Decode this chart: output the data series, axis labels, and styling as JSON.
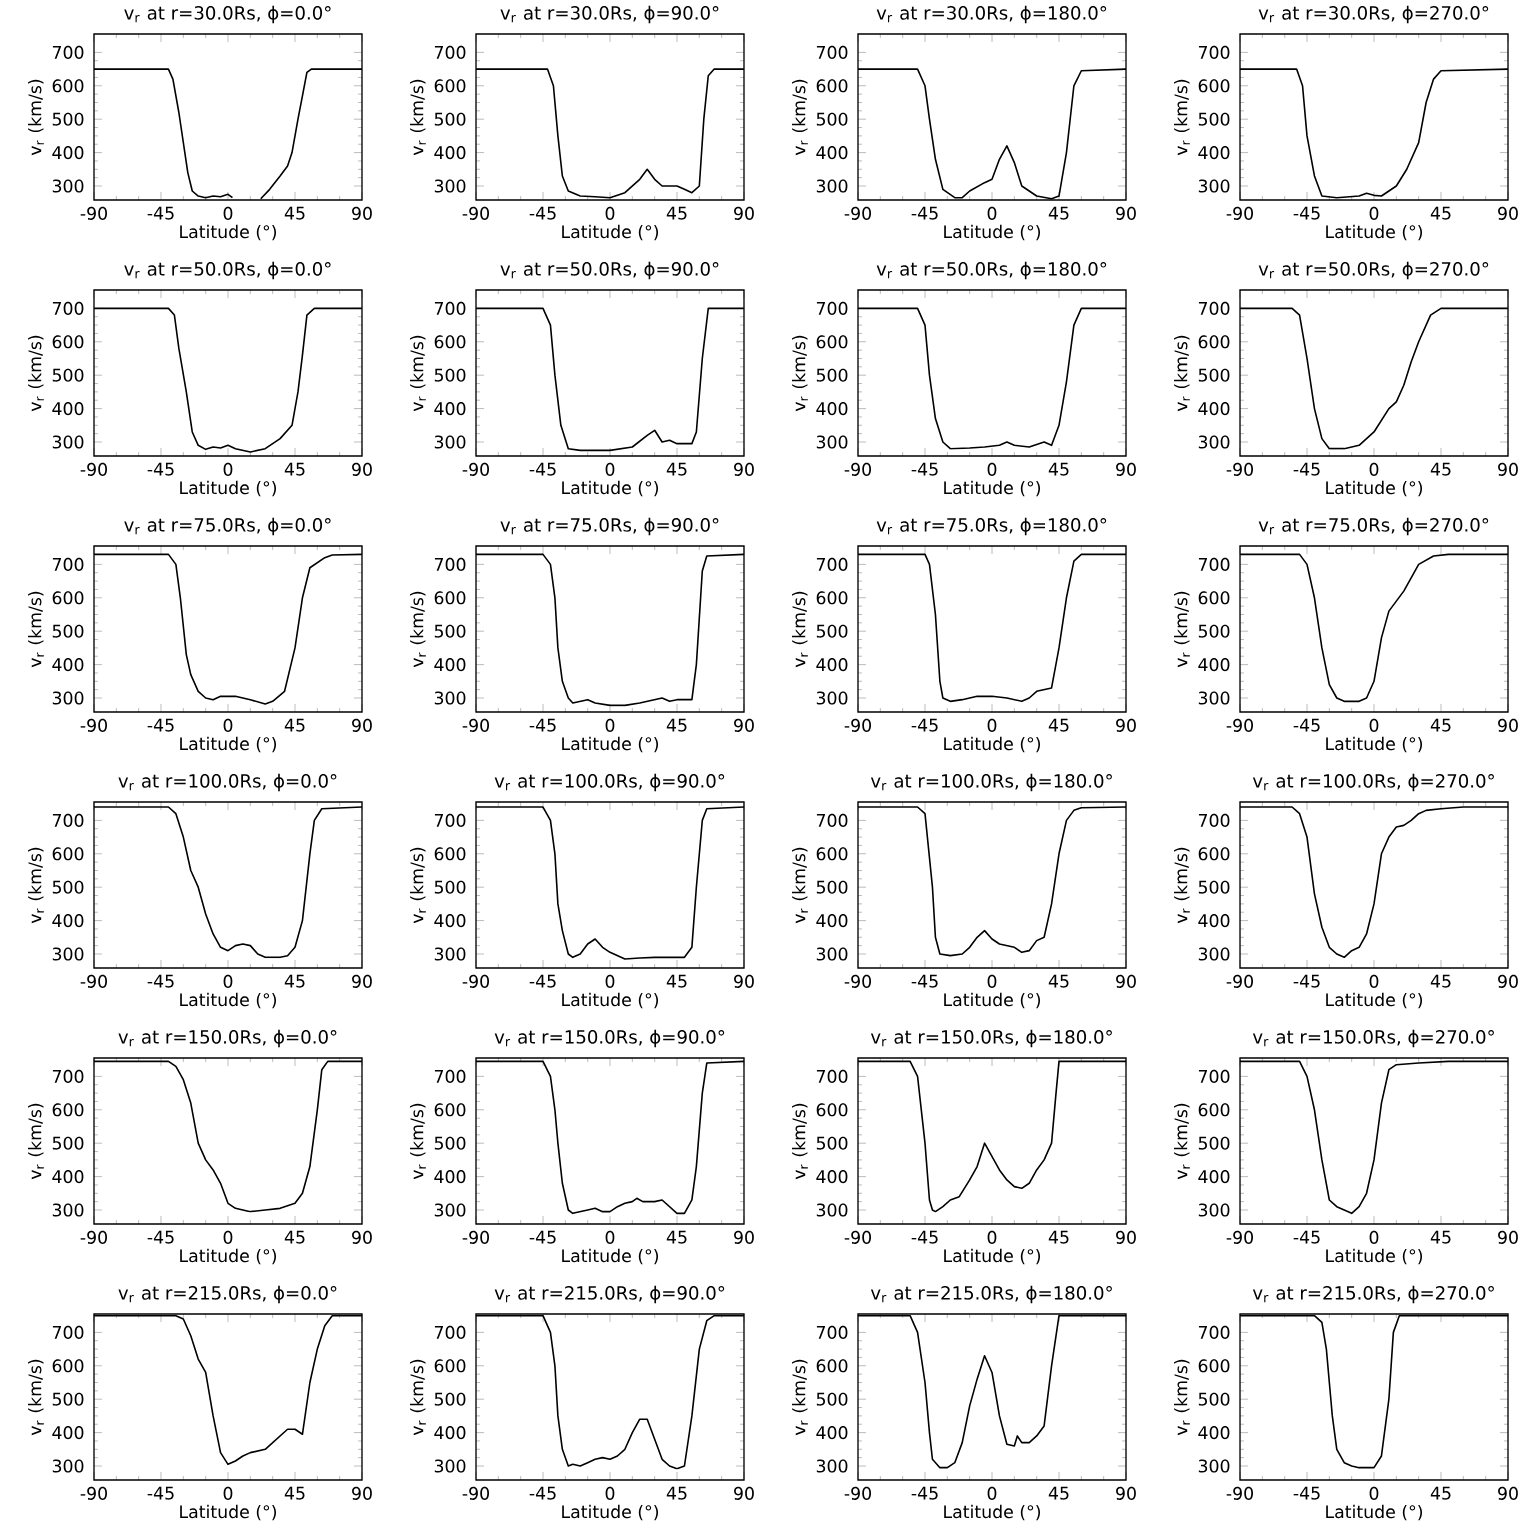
{
  "chart_data": [
    {
      "type": "line",
      "title": "v$_{r}$ at r=30.0Rs, ϕ=0.0°",
      "xlabel": "Latitude (°)",
      "ylabel": "v$_{r}$ (km/s)",
      "x": [
        -90,
        -40,
        -37,
        -33,
        -30,
        -27,
        -24,
        -20,
        -15,
        -10,
        -5,
        0,
        3,
        10,
        22,
        28,
        35,
        40,
        43,
        47,
        50,
        53,
        56,
        90
      ],
      "values": [
        650,
        650,
        620,
        520,
        430,
        340,
        285,
        270,
        265,
        270,
        268,
        275,
        265,
        null,
        262,
        290,
        330,
        360,
        400,
        500,
        570,
        640,
        650,
        650
      ],
      "color": "#000000",
      "xlim": [
        -90,
        90
      ],
      "ylim": [
        258,
        755
      ],
      "xticks": [
        -90,
        -45,
        0,
        45,
        90
      ],
      "yticks": [
        300,
        400,
        500,
        600,
        700
      ]
    },
    {
      "type": "line",
      "title": "v$_{r}$ at r=30.0Rs, ϕ=90.0°",
      "xlabel": "Latitude (°)",
      "ylabel": "v$_{r}$ (km/s)",
      "x": [
        -90,
        -42,
        -38,
        -35,
        -32,
        -28,
        -20,
        -10,
        0,
        10,
        20,
        25,
        30,
        35,
        45,
        50,
        55,
        60,
        63,
        66,
        70,
        90
      ],
      "values": [
        650,
        650,
        600,
        450,
        330,
        285,
        270,
        268,
        265,
        280,
        320,
        350,
        320,
        300,
        300,
        290,
        280,
        300,
        500,
        630,
        650,
        650
      ],
      "color": "#000000",
      "xlim": [
        -90,
        90
      ],
      "ylim": [
        258,
        755
      ],
      "xticks": [
        -90,
        -45,
        0,
        45,
        90
      ],
      "yticks": [
        300,
        400,
        500,
        600,
        700
      ]
    },
    {
      "type": "line",
      "title": "v$_{r}$ at r=30.0Rs, ϕ=180.0°",
      "xlabel": "Latitude (°)",
      "ylabel": "v$_{r}$ (km/s)",
      "x": [
        -90,
        -50,
        -45,
        -42,
        -38,
        -33,
        -25,
        -20,
        -15,
        -5,
        0,
        5,
        10,
        15,
        20,
        30,
        40,
        45,
        50,
        55,
        60,
        90
      ],
      "values": [
        650,
        650,
        600,
        500,
        380,
        290,
        265,
        265,
        285,
        310,
        320,
        380,
        420,
        370,
        300,
        270,
        262,
        270,
        400,
        600,
        645,
        650
      ],
      "color": "#000000",
      "xlim": [
        -90,
        90
      ],
      "ylim": [
        258,
        755
      ],
      "xticks": [
        -90,
        -45,
        0,
        45,
        90
      ],
      "yticks": [
        300,
        400,
        500,
        600,
        700
      ]
    },
    {
      "type": "line",
      "title": "v$_{r}$ at r=30.0Rs, ϕ=270.0°",
      "xlabel": "Latitude (°)",
      "ylabel": "v$_{r}$ (km/s)",
      "x": [
        -90,
        -52,
        -48,
        -45,
        -40,
        -35,
        -25,
        -10,
        -5,
        0,
        5,
        15,
        22,
        30,
        35,
        40,
        45,
        90
      ],
      "values": [
        650,
        650,
        600,
        450,
        330,
        270,
        265,
        270,
        278,
        272,
        270,
        300,
        350,
        430,
        550,
        620,
        645,
        650
      ],
      "color": "#000000",
      "xlim": [
        -90,
        90
      ],
      "ylim": [
        258,
        755
      ],
      "xticks": [
        -90,
        -45,
        0,
        45,
        90
      ],
      "yticks": [
        300,
        400,
        500,
        600,
        700
      ]
    },
    {
      "type": "line",
      "title": "v$_{r}$ at r=50.0Rs, ϕ=0.0°",
      "xlabel": "Latitude (°)",
      "ylabel": "v$_{r}$ (km/s)",
      "x": [
        -90,
        -40,
        -36,
        -33,
        -28,
        -24,
        -20,
        -15,
        -10,
        -5,
        0,
        5,
        15,
        25,
        35,
        43,
        47,
        50,
        53,
        58,
        90
      ],
      "values": [
        700,
        700,
        680,
        580,
        450,
        330,
        290,
        278,
        285,
        282,
        290,
        280,
        270,
        280,
        310,
        350,
        450,
        560,
        680,
        700,
        700
      ],
      "color": "#000000",
      "xlim": [
        -90,
        90
      ],
      "ylim": [
        258,
        755
      ],
      "xticks": [
        -90,
        -45,
        0,
        45,
        90
      ],
      "yticks": [
        300,
        400,
        500,
        600,
        700
      ]
    },
    {
      "type": "line",
      "title": "v$_{r}$ at r=50.0Rs, ϕ=90.0°",
      "xlabel": "Latitude (°)",
      "ylabel": "v$_{r}$ (km/s)",
      "x": [
        -90,
        -45,
        -40,
        -37,
        -33,
        -28,
        -20,
        0,
        15,
        25,
        30,
        35,
        40,
        45,
        55,
        58,
        62,
        66,
        90
      ],
      "values": [
        700,
        700,
        650,
        500,
        350,
        280,
        275,
        275,
        285,
        320,
        335,
        300,
        305,
        295,
        295,
        330,
        550,
        700,
        700
      ],
      "color": "#000000",
      "xlim": [
        -90,
        90
      ],
      "ylim": [
        258,
        755
      ],
      "xticks": [
        -90,
        -45,
        0,
        45,
        90
      ],
      "yticks": [
        300,
        400,
        500,
        600,
        700
      ]
    },
    {
      "type": "line",
      "title": "v$_{r}$ at r=50.0Rs, ϕ=180.0°",
      "xlabel": "Latitude (°)",
      "ylabel": "v$_{r}$ (km/s)",
      "x": [
        -90,
        -50,
        -45,
        -42,
        -38,
        -33,
        -28,
        -15,
        -5,
        5,
        10,
        15,
        25,
        35,
        40,
        45,
        50,
        55,
        60,
        90
      ],
      "values": [
        700,
        700,
        650,
        500,
        370,
        300,
        280,
        282,
        285,
        290,
        300,
        290,
        285,
        300,
        290,
        350,
        480,
        650,
        700,
        700
      ],
      "color": "#000000",
      "xlim": [
        -90,
        90
      ],
      "ylim": [
        258,
        755
      ],
      "xticks": [
        -90,
        -45,
        0,
        45,
        90
      ],
      "yticks": [
        300,
        400,
        500,
        600,
        700
      ]
    },
    {
      "type": "line",
      "title": "v$_{r}$ at r=50.0Rs, ϕ=270.0°",
      "xlabel": "Latitude (°)",
      "ylabel": "v$_{r}$ (km/s)",
      "x": [
        -90,
        -55,
        -50,
        -45,
        -40,
        -35,
        -30,
        -20,
        -10,
        0,
        10,
        15,
        20,
        25,
        30,
        38,
        45,
        90
      ],
      "values": [
        700,
        700,
        680,
        550,
        400,
        310,
        280,
        280,
        290,
        330,
        400,
        420,
        470,
        540,
        600,
        680,
        700,
        700
      ],
      "color": "#000000",
      "xlim": [
        -90,
        90
      ],
      "ylim": [
        258,
        755
      ],
      "xticks": [
        -90,
        -45,
        0,
        45,
        90
      ],
      "yticks": [
        300,
        400,
        500,
        600,
        700
      ]
    },
    {
      "type": "line",
      "title": "v$_{r}$ at r=75.0Rs, ϕ=0.0°",
      "xlabel": "Latitude (°)",
      "ylabel": "v$_{r}$ (km/s)",
      "x": [
        -90,
        -40,
        -35,
        -32,
        -28,
        -25,
        -20,
        -15,
        -10,
        -5,
        5,
        15,
        25,
        30,
        38,
        45,
        50,
        55,
        65,
        70,
        90
      ],
      "values": [
        730,
        730,
        700,
        600,
        430,
        370,
        320,
        300,
        295,
        305,
        305,
        295,
        282,
        290,
        320,
        450,
        600,
        690,
        720,
        728,
        730
      ],
      "color": "#000000",
      "xlim": [
        -90,
        90
      ],
      "ylim": [
        258,
        755
      ],
      "xticks": [
        -90,
        -45,
        0,
        45,
        90
      ],
      "yticks": [
        300,
        400,
        500,
        600,
        700
      ]
    },
    {
      "type": "line",
      "title": "v$_{r}$ at r=75.0Rs, ϕ=90.0°",
      "xlabel": "Latitude (°)",
      "ylabel": "v$_{r}$ (km/s)",
      "x": [
        -90,
        -45,
        -40,
        -37,
        -35,
        -32,
        -28,
        -25,
        -20,
        -15,
        -10,
        0,
        10,
        20,
        30,
        35,
        40,
        45,
        55,
        58,
        62,
        65,
        90
      ],
      "values": [
        730,
        730,
        700,
        600,
        450,
        350,
        300,
        285,
        290,
        295,
        285,
        278,
        278,
        285,
        295,
        300,
        290,
        295,
        295,
        400,
        680,
        725,
        730
      ],
      "color": "#000000",
      "xlim": [
        -90,
        90
      ],
      "ylim": [
        258,
        755
      ],
      "xticks": [
        -90,
        -45,
        0,
        45,
        90
      ],
      "yticks": [
        300,
        400,
        500,
        600,
        700
      ]
    },
    {
      "type": "line",
      "title": "v$_{r}$ at r=75.0Rs, ϕ=180.0°",
      "xlabel": "Latitude (°)",
      "ylabel": "v$_{r}$ (km/s)",
      "x": [
        -90,
        -45,
        -42,
        -38,
        -35,
        -33,
        -28,
        -20,
        -10,
        0,
        10,
        20,
        25,
        30,
        40,
        45,
        50,
        55,
        60,
        90
      ],
      "values": [
        730,
        730,
        700,
        550,
        350,
        300,
        290,
        295,
        305,
        305,
        300,
        290,
        300,
        320,
        330,
        450,
        600,
        710,
        730,
        730
      ],
      "color": "#000000",
      "xlim": [
        -90,
        90
      ],
      "ylim": [
        258,
        755
      ],
      "xticks": [
        -90,
        -45,
        0,
        45,
        90
      ],
      "yticks": [
        300,
        400,
        500,
        600,
        700
      ]
    },
    {
      "type": "line",
      "title": "v$_{r}$ at r=75.0Rs, ϕ=270.0°",
      "xlabel": "Latitude (°)",
      "ylabel": "v$_{r}$ (km/s)",
      "x": [
        -90,
        -50,
        -45,
        -40,
        -35,
        -30,
        -25,
        -20,
        -10,
        -5,
        0,
        5,
        10,
        15,
        20,
        25,
        30,
        40,
        50,
        90
      ],
      "values": [
        730,
        730,
        700,
        600,
        450,
        340,
        300,
        290,
        290,
        300,
        350,
        480,
        560,
        590,
        620,
        660,
        700,
        725,
        730,
        730
      ],
      "color": "#000000",
      "xlim": [
        -90,
        90
      ],
      "ylim": [
        258,
        755
      ],
      "xticks": [
        -90,
        -45,
        0,
        45,
        90
      ],
      "yticks": [
        300,
        400,
        500,
        600,
        700
      ]
    },
    {
      "type": "line",
      "title": "v$_{r}$ at r=100.0Rs, ϕ=0.0°",
      "xlabel": "Latitude (°)",
      "ylabel": "v$_{r}$ (km/s)",
      "x": [
        -90,
        -40,
        -35,
        -30,
        -25,
        -20,
        -15,
        -10,
        -5,
        0,
        5,
        10,
        15,
        20,
        25,
        35,
        40,
        45,
        50,
        55,
        58,
        63,
        90
      ],
      "values": [
        740,
        740,
        720,
        650,
        550,
        500,
        420,
        360,
        320,
        310,
        325,
        330,
        325,
        300,
        290,
        290,
        295,
        320,
        400,
        600,
        700,
        735,
        740
      ],
      "color": "#000000",
      "xlim": [
        -90,
        90
      ],
      "ylim": [
        258,
        755
      ],
      "xticks": [
        -90,
        -45,
        0,
        45,
        90
      ],
      "yticks": [
        300,
        400,
        500,
        600,
        700
      ]
    },
    {
      "type": "line",
      "title": "v$_{r}$ at r=100.0Rs, ϕ=90.0°",
      "xlabel": "Latitude (°)",
      "ylabel": "v$_{r}$ (km/s)",
      "x": [
        -90,
        -45,
        -40,
        -37,
        -35,
        -32,
        -28,
        -25,
        -20,
        -15,
        -10,
        -5,
        0,
        10,
        20,
        30,
        50,
        55,
        58,
        62,
        65,
        90
      ],
      "values": [
        740,
        740,
        700,
        600,
        450,
        370,
        300,
        290,
        300,
        330,
        345,
        320,
        305,
        285,
        288,
        290,
        290,
        320,
        500,
        700,
        735,
        740
      ],
      "color": "#000000",
      "xlim": [
        -90,
        90
      ],
      "ylim": [
        258,
        755
      ],
      "xticks": [
        -90,
        -45,
        0,
        45,
        90
      ],
      "yticks": [
        300,
        400,
        500,
        600,
        700
      ]
    },
    {
      "type": "line",
      "title": "v$_{r}$ at r=100.0Rs, ϕ=180.0°",
      "xlabel": "Latitude (°)",
      "ylabel": "v$_{r}$ (km/s)",
      "x": [
        -90,
        -50,
        -45,
        -40,
        -38,
        -35,
        -28,
        -20,
        -15,
        -10,
        -5,
        0,
        5,
        15,
        20,
        25,
        30,
        35,
        40,
        45,
        50,
        55,
        60,
        90
      ],
      "values": [
        740,
        740,
        720,
        500,
        350,
        300,
        295,
        300,
        320,
        350,
        370,
        345,
        330,
        320,
        305,
        310,
        340,
        350,
        450,
        600,
        700,
        730,
        738,
        740
      ],
      "color": "#000000",
      "xlim": [
        -90,
        90
      ],
      "ylim": [
        258,
        755
      ],
      "xticks": [
        -90,
        -45,
        0,
        45,
        90
      ],
      "yticks": [
        300,
        400,
        500,
        600,
        700
      ]
    },
    {
      "type": "line",
      "title": "v$_{r}$ at r=100.0Rs, ϕ=270.0°",
      "xlabel": "Latitude (°)",
      "ylabel": "v$_{r}$ (km/s)",
      "x": [
        -90,
        -55,
        -50,
        -45,
        -40,
        -35,
        -30,
        -25,
        -20,
        -15,
        -10,
        -5,
        0,
        5,
        10,
        15,
        20,
        25,
        30,
        35,
        45,
        60,
        90
      ],
      "values": [
        740,
        740,
        720,
        650,
        480,
        380,
        320,
        300,
        290,
        310,
        320,
        360,
        450,
        600,
        650,
        680,
        685,
        700,
        720,
        730,
        735,
        740,
        740
      ],
      "color": "#000000",
      "xlim": [
        -90,
        90
      ],
      "ylim": [
        258,
        755
      ],
      "xticks": [
        -90,
        -45,
        0,
        45,
        90
      ],
      "yticks": [
        300,
        400,
        500,
        600,
        700
      ]
    },
    {
      "type": "line",
      "title": "v$_{r}$ at r=150.0Rs, ϕ=0.0°",
      "xlabel": "Latitude (°)",
      "ylabel": "v$_{r}$ (km/s)",
      "x": [
        -90,
        -40,
        -35,
        -30,
        -25,
        -20,
        -15,
        -10,
        -5,
        0,
        5,
        10,
        15,
        25,
        35,
        45,
        50,
        55,
        60,
        63,
        67,
        90
      ],
      "values": [
        745,
        745,
        730,
        690,
        620,
        500,
        450,
        420,
        380,
        320,
        305,
        300,
        295,
        300,
        305,
        320,
        350,
        430,
        600,
        720,
        745,
        745
      ],
      "color": "#000000",
      "xlim": [
        -90,
        90
      ],
      "ylim": [
        258,
        755
      ],
      "xticks": [
        -90,
        -45,
        0,
        45,
        90
      ],
      "yticks": [
        300,
        400,
        500,
        600,
        700
      ]
    },
    {
      "type": "line",
      "title": "v$_{r}$ at r=150.0Rs, ϕ=90.0°",
      "xlabel": "Latitude (°)",
      "ylabel": "v$_{r}$ (km/s)",
      "x": [
        -90,
        -45,
        -40,
        -37,
        -35,
        -32,
        -28,
        -25,
        -20,
        -15,
        -10,
        -5,
        0,
        5,
        10,
        15,
        18,
        22,
        30,
        35,
        40,
        45,
        50,
        55,
        58,
        62,
        65,
        90
      ],
      "values": [
        745,
        745,
        700,
        600,
        500,
        380,
        300,
        290,
        295,
        300,
        305,
        295,
        295,
        310,
        320,
        325,
        335,
        325,
        325,
        330,
        310,
        290,
        290,
        330,
        430,
        650,
        740,
        745
      ],
      "color": "#000000",
      "xlim": [
        -90,
        90
      ],
      "ylim": [
        258,
        755
      ],
      "xticks": [
        -90,
        -45,
        0,
        45,
        90
      ],
      "yticks": [
        300,
        400,
        500,
        600,
        700
      ]
    },
    {
      "type": "line",
      "title": "v$_{r}$ at r=150.0Rs, ϕ=180.0°",
      "xlabel": "Latitude (°)",
      "ylabel": "v$_{r}$ (km/s)",
      "x": [
        -90,
        -55,
        -50,
        -45,
        -42,
        -40,
        -38,
        -33,
        -28,
        -22,
        -15,
        -10,
        -5,
        0,
        5,
        10,
        15,
        20,
        25,
        30,
        35,
        40,
        43,
        45,
        90
      ],
      "values": [
        745,
        745,
        700,
        500,
        330,
        300,
        295,
        310,
        330,
        340,
        390,
        430,
        500,
        460,
        420,
        390,
        370,
        365,
        380,
        420,
        450,
        500,
        650,
        745,
        745
      ],
      "color": "#000000",
      "xlim": [
        -90,
        90
      ],
      "ylim": [
        258,
        755
      ],
      "xticks": [
        -90,
        -45,
        0,
        45,
        90
      ],
      "yticks": [
        300,
        400,
        500,
        600,
        700
      ]
    },
    {
      "type": "line",
      "title": "v$_{r}$ at r=150.0Rs, ϕ=270.0°",
      "xlabel": "Latitude (°)",
      "ylabel": "v$_{r}$ (km/s)",
      "x": [
        -90,
        -50,
        -45,
        -40,
        -35,
        -30,
        -25,
        -20,
        -15,
        -10,
        -5,
        0,
        5,
        10,
        15,
        30,
        50,
        90
      ],
      "values": [
        745,
        745,
        700,
        600,
        450,
        330,
        310,
        300,
        290,
        310,
        350,
        450,
        620,
        720,
        735,
        740,
        745,
        745
      ],
      "color": "#000000",
      "xlim": [
        -90,
        90
      ],
      "ylim": [
        258,
        755
      ],
      "xticks": [
        -90,
        -45,
        0,
        45,
        90
      ],
      "yticks": [
        300,
        400,
        500,
        600,
        700
      ]
    },
    {
      "type": "line",
      "title": "v$_{r}$ at r=215.0Rs, ϕ=0.0°",
      "xlabel": "Latitude (°)",
      "ylabel": "v$_{r}$ (km/s)",
      "x": [
        -90,
        -35,
        -30,
        -25,
        -20,
        -15,
        -10,
        -5,
        0,
        5,
        10,
        15,
        25,
        30,
        40,
        45,
        50,
        55,
        60,
        65,
        70,
        90
      ],
      "values": [
        750,
        750,
        740,
        690,
        620,
        580,
        450,
        340,
        305,
        315,
        330,
        340,
        350,
        370,
        410,
        410,
        395,
        550,
        650,
        720,
        750,
        750
      ],
      "color": "#000000",
      "xlim": [
        -90,
        90
      ],
      "ylim": [
        258,
        755
      ],
      "xticks": [
        -90,
        -45,
        0,
        45,
        90
      ],
      "yticks": [
        300,
        400,
        500,
        600,
        700
      ]
    },
    {
      "type": "line",
      "title": "v$_{r}$ at r=215.0Rs, ϕ=90.0°",
      "xlabel": "Latitude (°)",
      "ylabel": "v$_{r}$ (km/s)",
      "x": [
        -90,
        -45,
        -40,
        -37,
        -35,
        -32,
        -28,
        -25,
        -20,
        -15,
        -10,
        -5,
        0,
        5,
        10,
        15,
        20,
        25,
        30,
        35,
        40,
        45,
        50,
        55,
        60,
        65,
        70,
        90
      ],
      "values": [
        750,
        750,
        700,
        600,
        450,
        350,
        300,
        305,
        300,
        310,
        320,
        325,
        320,
        330,
        350,
        400,
        440,
        440,
        380,
        320,
        300,
        292,
        300,
        450,
        650,
        735,
        750,
        750
      ],
      "color": "#000000",
      "xlim": [
        -90,
        90
      ],
      "ylim": [
        258,
        755
      ],
      "xticks": [
        -90,
        -45,
        0,
        45,
        90
      ],
      "yticks": [
        300,
        400,
        500,
        600,
        700
      ]
    },
    {
      "type": "line",
      "title": "v$_{r}$ at r=215.0Rs, ϕ=180.0°",
      "xlabel": "Latitude (°)",
      "ylabel": "v$_{r}$ (km/s)",
      "x": [
        -90,
        -55,
        -50,
        -45,
        -42,
        -40,
        -35,
        -30,
        -25,
        -20,
        -15,
        -10,
        -5,
        0,
        5,
        10,
        15,
        17,
        20,
        25,
        30,
        35,
        40,
        45,
        90
      ],
      "values": [
        750,
        750,
        700,
        550,
        400,
        320,
        295,
        295,
        310,
        370,
        480,
        560,
        630,
        580,
        450,
        365,
        360,
        390,
        370,
        370,
        390,
        420,
        600,
        750,
        750
      ],
      "color": "#000000",
      "xlim": [
        -90,
        90
      ],
      "ylim": [
        258,
        755
      ],
      "xticks": [
        -90,
        -45,
        0,
        45,
        90
      ],
      "yticks": [
        300,
        400,
        500,
        600,
        700
      ]
    },
    {
      "type": "line",
      "title": "v$_{r}$ at r=215.0Rs, ϕ=270.0°",
      "xlabel": "Latitude (°)",
      "ylabel": "v$_{r}$ (km/s)",
      "x": [
        -90,
        -40,
        -35,
        -32,
        -30,
        -28,
        -25,
        -20,
        -15,
        -10,
        0,
        5,
        10,
        13,
        17,
        90
      ],
      "values": [
        750,
        750,
        730,
        650,
        550,
        450,
        350,
        310,
        300,
        295,
        295,
        330,
        500,
        700,
        750,
        750
      ],
      "color": "#000000",
      "xlim": [
        -90,
        90
      ],
      "ylim": [
        258,
        755
      ],
      "xticks": [
        -90,
        -45,
        0,
        45,
        90
      ],
      "yticks": [
        300,
        400,
        500,
        600,
        700
      ]
    }
  ]
}
